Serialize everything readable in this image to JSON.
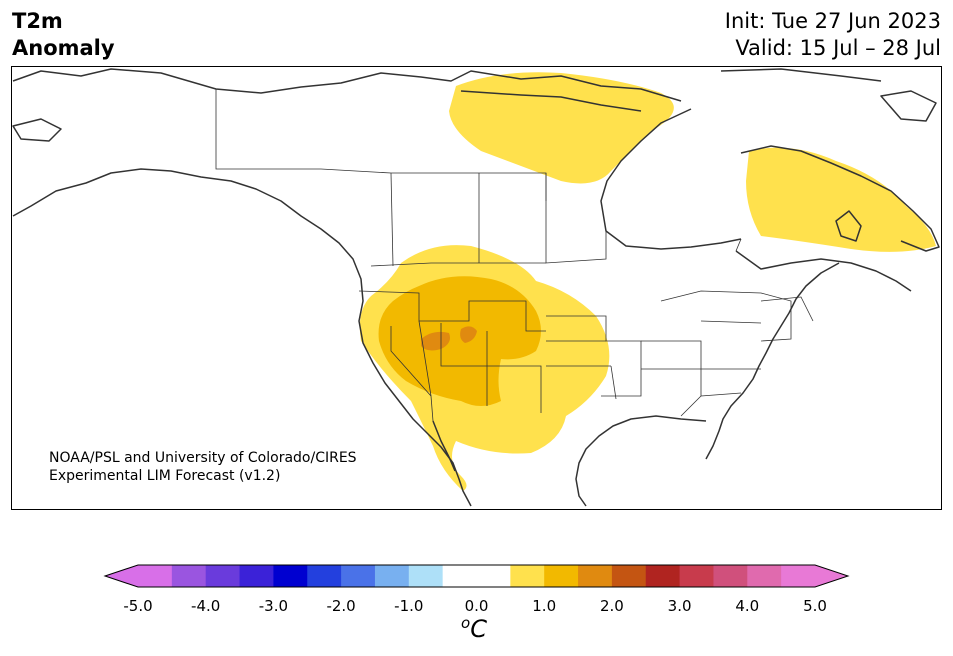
{
  "header": {
    "variable": "T2m",
    "product": "Anomaly",
    "init": "Init: Tue 27 Jun 2023",
    "valid": "Valid: 15 Jul – 28 Jul"
  },
  "credit": {
    "line1": "NOAA/PSL and University of Colorado/CIRES",
    "line2": "Experimental LIM Forecast (v1.2)"
  },
  "colorbar": {
    "unit_degree": "o",
    "unit_letter": "C",
    "ticks": [
      "-5.0",
      "-4.0",
      "-3.0",
      "-2.0",
      "-1.0",
      "0.0",
      "1.0",
      "2.0",
      "3.0",
      "4.0",
      "5.0"
    ],
    "extend": "both",
    "colors": [
      "#d86fe8",
      "#9a55e0",
      "#6a3bdc",
      "#3b22d8",
      "#0000d0",
      "#2340de",
      "#4a72e8",
      "#78b0f0",
      "#aee0f8",
      "#ffffff",
      "#ffffff",
      "#ffe14d",
      "#f2b900",
      "#e08a10",
      "#c45512",
      "#b02420",
      "#c83b4c",
      "#d0507c",
      "#e06aae",
      "#e879d6"
    ]
  },
  "map": {
    "region": "North America",
    "anomaly_colors": {
      "light": "#ffe14d",
      "medium": "#f2b900",
      "strong": "#e08a10"
    }
  }
}
